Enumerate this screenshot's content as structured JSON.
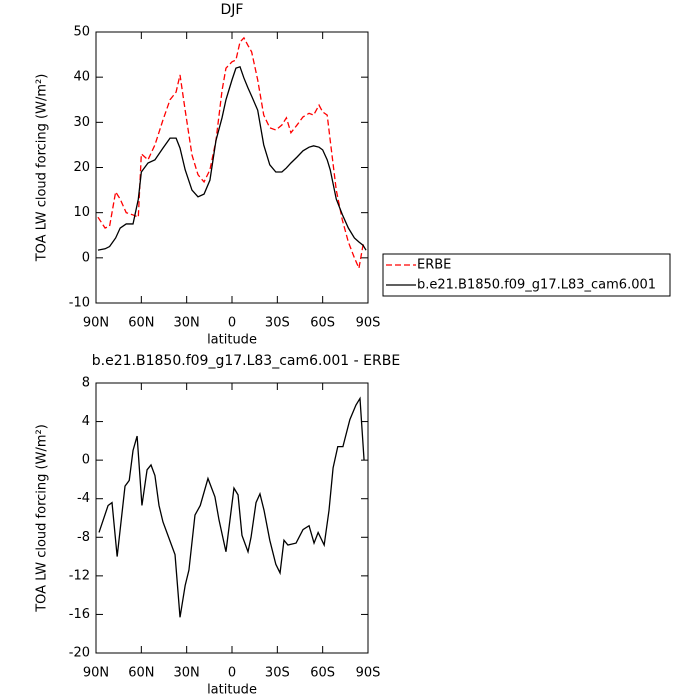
{
  "chart_data": [
    {
      "type": "line",
      "title": "DJF",
      "xlabel": "latitude",
      "ylabel": "TOA LW cloud forcing (W/m²)",
      "x": [
        88.7,
        84,
        81,
        77,
        74,
        70,
        65.5,
        62,
        60,
        55.6,
        51,
        45.7,
        41,
        37,
        34.4,
        31,
        26.5,
        22.5,
        18.5,
        14.6,
        10.6,
        6.6,
        4,
        0,
        -2.6,
        -5.3,
        -7.9,
        -10.6,
        -13,
        -17,
        -21,
        -25,
        -29,
        -33,
        -36,
        -39,
        -43,
        -47,
        -51,
        -54,
        -57.6,
        -60,
        -63,
        -65,
        -69,
        -73,
        -77,
        -81,
        -84,
        -86.7,
        -88.7
      ],
      "series": [
        {
          "name": "ERBE",
          "color": "#ff0000",
          "style": "dashed",
          "values": [
            9,
            6.6,
            7,
            14.6,
            13,
            10,
            9.5,
            9,
            23,
            21.7,
            25,
            30.5,
            35,
            36.7,
            40.5,
            32.7,
            22.8,
            18.4,
            16.8,
            19.5,
            26,
            37,
            42,
            43.4,
            43.8,
            47.8,
            48.7,
            47,
            45.6,
            39.4,
            31.6,
            28.8,
            28.3,
            29.4,
            31,
            27.7,
            29.4,
            31.2,
            32,
            31.6,
            33.8,
            32.3,
            31.6,
            26,
            15,
            8.4,
            3.5,
            0,
            -2.3,
            2.8,
            3
          ]
        },
        {
          "name": "b.e21.B1850.f09_g17.L83_cam6.001",
          "color": "#000000",
          "style": "solid",
          "values": [
            1.7,
            2,
            2.5,
            4.4,
            6.6,
            7.5,
            7.5,
            13,
            19,
            21,
            21.7,
            24.3,
            26.5,
            26.5,
            24.3,
            19.5,
            15,
            13.5,
            14.1,
            17.2,
            26,
            31,
            35,
            39.4,
            42,
            42.3,
            39.8,
            37.6,
            35.8,
            32.7,
            25,
            20.6,
            19,
            19,
            19.9,
            21,
            22.3,
            23.7,
            24.5,
            24.8,
            24.5,
            23.9,
            21.7,
            19.5,
            13,
            9.6,
            6.6,
            4.4,
            3.5,
            2.8,
            1.7
          ]
        }
      ],
      "xlim": [
        90,
        -90
      ],
      "xticks": [
        {
          "value": 90,
          "label": "90N"
        },
        {
          "value": 60,
          "label": "60N"
        },
        {
          "value": 30,
          "label": "30N"
        },
        0,
        {
          "value": -30,
          "label": "30S"
        },
        {
          "value": -60,
          "label": "60S"
        },
        {
          "value": -90,
          "label": "90S"
        }
      ],
      "ylim": [
        -10,
        50
      ],
      "yticks": [
        -10,
        0,
        10,
        20,
        30,
        40,
        50
      ],
      "legend": "right"
    },
    {
      "type": "line",
      "title": "b.e21.B1850.f09_g17.L83_cam6.001 - ERBE",
      "xlabel": "latitude",
      "ylabel": "TOA LW cloud forcing (W/m²)",
      "x": [
        88,
        82,
        79.4,
        76,
        70.8,
        68,
        65.5,
        62.8,
        59.6,
        56.2,
        53.6,
        51,
        48.3,
        45.7,
        42.4,
        37.7,
        34.4,
        31,
        28.5,
        24.5,
        21,
        15.9,
        11.3,
        8.6,
        4,
        -1.3,
        -4,
        -6.6,
        -10.6,
        -12.6,
        -15.9,
        -18.5,
        -21.2,
        -25,
        -29,
        -31.8,
        -34.4,
        -37,
        -42.4,
        -47,
        -51,
        -54.3,
        -57,
        -61,
        -64.2,
        -66.9,
        -70,
        -73.4,
        -78,
        -82,
        -84.7,
        -87.4
      ],
      "series": [
        {
          "color": "#000000",
          "style": "solid",
          "values": [
            -7.5,
            -4.7,
            -4.4,
            -10,
            -2.7,
            -2.1,
            1,
            2.5,
            -4.7,
            -1,
            -0.5,
            -1.6,
            -4.7,
            -6.4,
            -7.8,
            -9.8,
            -16.3,
            -13,
            -11.4,
            -5.7,
            -4.7,
            -1.9,
            -3.8,
            -6.2,
            -9.5,
            -2.9,
            -3.6,
            -7.8,
            -9.5,
            -8,
            -4.4,
            -3.5,
            -5.2,
            -8.3,
            -10.8,
            -11.7,
            -8.3,
            -8.8,
            -8.6,
            -7.2,
            -6.8,
            -8.6,
            -7.5,
            -8.8,
            -5.2,
            -0.8,
            1.4,
            1.4,
            4.2,
            5.7,
            6.4,
            0
          ]
        }
      ],
      "xlim": [
        90,
        -90
      ],
      "xticks": [
        {
          "value": 90,
          "label": "90N"
        },
        {
          "value": 60,
          "label": "60N"
        },
        {
          "value": 30,
          "label": "30N"
        },
        0,
        {
          "value": -30,
          "label": "30S"
        },
        {
          "value": -60,
          "label": "60S"
        },
        {
          "value": -90,
          "label": "90S"
        }
      ],
      "ylim": [
        -20,
        8
      ],
      "yticks": [
        -20,
        -16,
        -12,
        -8,
        -4,
        0,
        4,
        8
      ]
    }
  ]
}
